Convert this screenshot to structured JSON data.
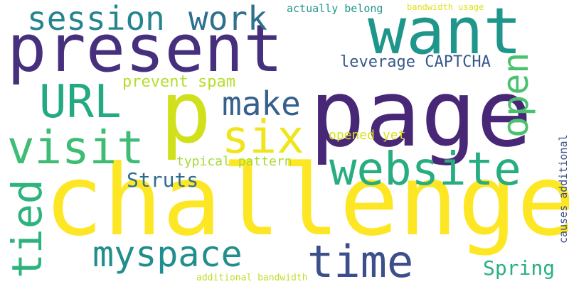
{
  "words": [
    {
      "text": "challenge",
      "color": "#fde725"
    },
    {
      "text": "page",
      "color": "#482777"
    },
    {
      "text": "present",
      "color": "#46307e"
    },
    {
      "text": "p",
      "color": "#d0e11c"
    },
    {
      "text": "want",
      "color": "#1f968b"
    },
    {
      "text": "website",
      "color": "#27ad81"
    },
    {
      "text": "visit",
      "color": "#3ebc73"
    },
    {
      "text": "myspace",
      "color": "#218e8d"
    },
    {
      "text": "six",
      "color": "#f0e51c"
    },
    {
      "text": "time",
      "color": "#3c4f8a"
    },
    {
      "text": "URL",
      "color": "#23a983"
    },
    {
      "text": "session",
      "color": "#25858e"
    },
    {
      "text": "tied",
      "color": "#2eb37c"
    },
    {
      "text": "open",
      "color": "#4ac16d"
    },
    {
      "text": "work",
      "color": "#2d718e"
    },
    {
      "text": "make",
      "color": "#355f8d"
    },
    {
      "text": "Spring",
      "color": "#2ab07f"
    },
    {
      "text": "Struts",
      "color": "#2f6c8e"
    },
    {
      "text": "leverage CAPTCHA",
      "color": "#38588c"
    },
    {
      "text": "prevent spam",
      "color": "#b5de2b"
    },
    {
      "text": "typical pattern",
      "color": "#a5db36"
    },
    {
      "text": "opened yet",
      "color": "#d8e219"
    },
    {
      "text": "actually belong",
      "color": "#1f958b"
    },
    {
      "text": "causes additional",
      "color": "#3b518b"
    },
    {
      "text": "additional bandwidth",
      "color": "#bddf26"
    },
    {
      "text": "bandwidth usage",
      "color": "#dde318"
    }
  ]
}
